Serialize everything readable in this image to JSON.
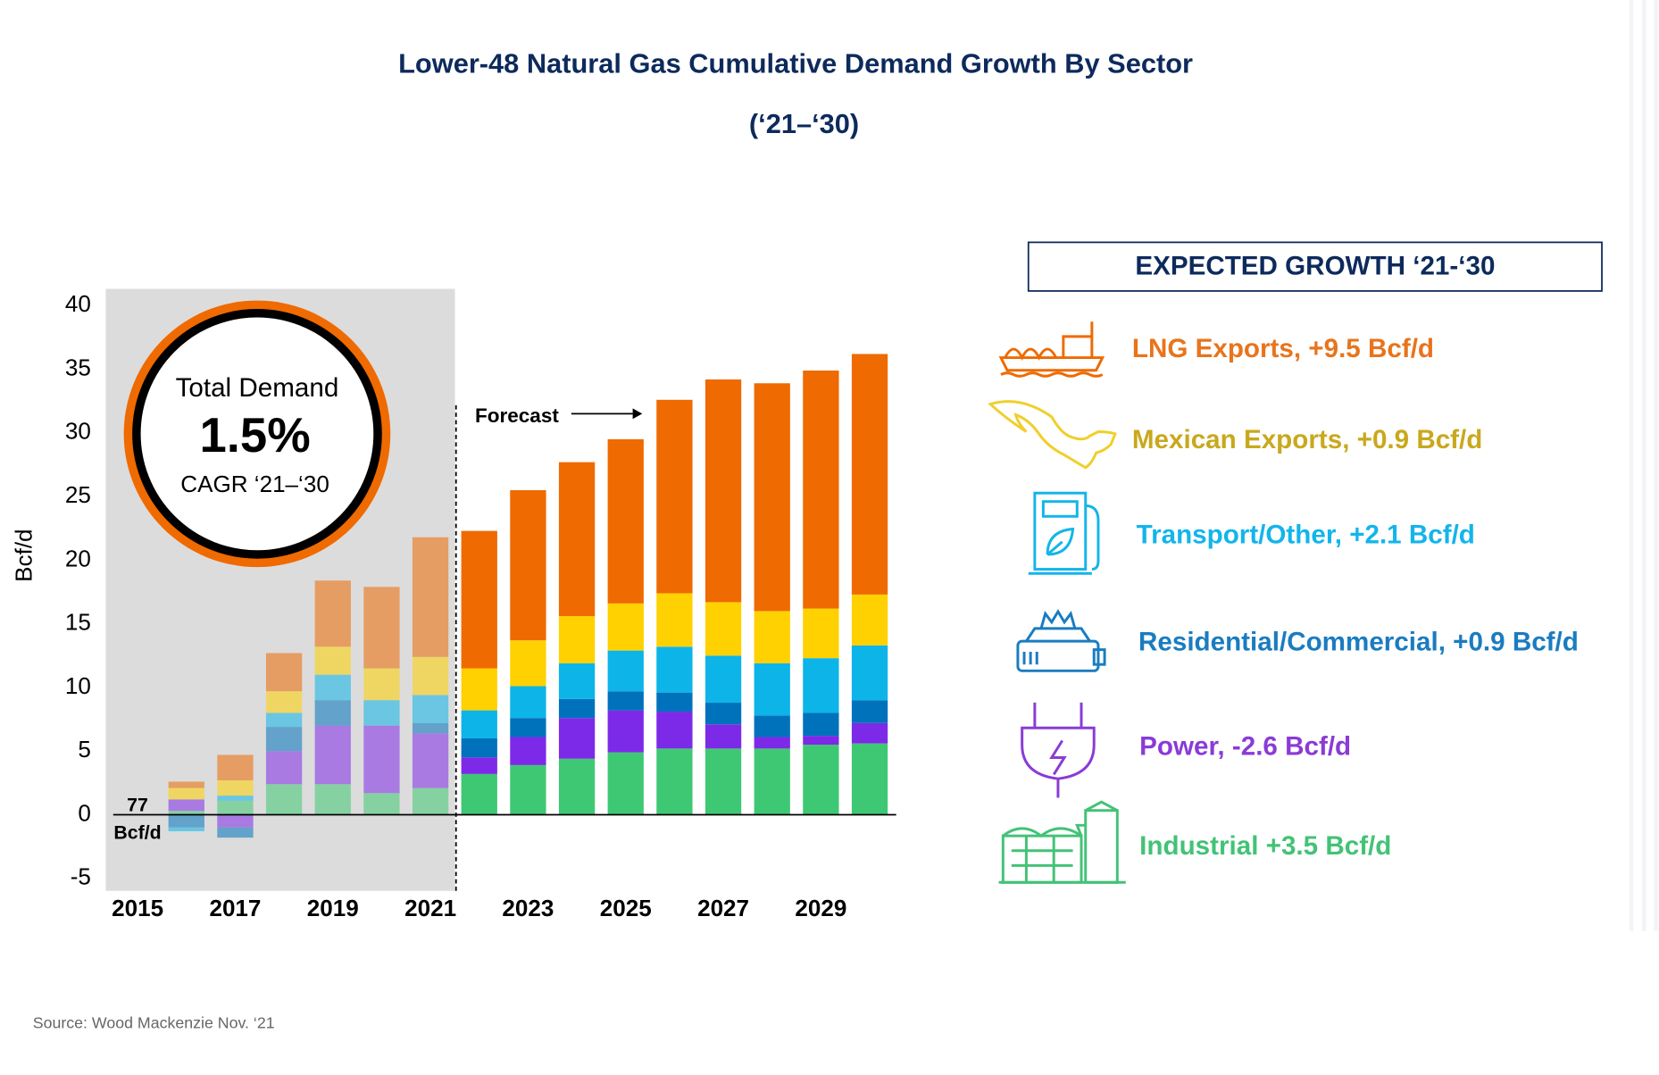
{
  "chart_data": {
    "type": "stacked_bar",
    "title": "Lower-48 Natural Gas Cumulative Demand Growth By Sector",
    "subtitle": "(‘21–‘30)",
    "y_label": "Bcf/d",
    "source": "Source: Wood Mackenzie Nov. ‘21",
    "annotations": {
      "baseline_value": "77",
      "baseline_unit": "Bcf/d",
      "forecast": "Forecast",
      "cagr_title": "Total Demand",
      "cagr_value": "1.5%",
      "cagr_period": "CAGR ‘21–‘30"
    },
    "legend_title": "EXPECTED GROWTH ‘21-‘30",
    "categories": [
      "2015",
      null,
      "2017",
      null,
      "2019",
      null,
      "2021",
      null,
      "2023",
      null,
      "2025",
      null,
      "2027",
      null,
      "2029",
      null
    ],
    "series": [
      {
        "name": "LNG Exports, +9.5 Bcf/d",
        "color": "#ef6a00",
        "label_color": "#e8741c",
        "values": [
          0,
          0.5,
          2.0,
          3.0,
          5.2,
          6.4,
          9.4,
          10.8,
          11.8,
          12.1,
          12.9,
          15.2,
          17.5,
          17.9,
          18.7,
          18.9
        ]
      },
      {
        "name": "Mexican Exports, +0.9 Bcf/d",
        "color": "#ffd100",
        "label_color": "#c9a81c",
        "values": [
          0,
          0.9,
          1.2,
          1.7,
          2.2,
          2.5,
          3.0,
          3.3,
          3.6,
          3.7,
          3.7,
          4.2,
          4.2,
          4.1,
          3.9,
          4.0
        ]
      },
      {
        "name": "Transport/Other, +2.1 Bcf/d",
        "color": "#0db4e8",
        "label_color": "#13b5ea",
        "values": [
          0,
          -0.3,
          0.4,
          1.1,
          2.0,
          2.0,
          2.2,
          2.2,
          2.5,
          2.8,
          3.2,
          3.6,
          3.7,
          4.1,
          4.3,
          4.3
        ]
      },
      {
        "name": "Residential/Commercial,  +0.9 Bcf/d",
        "color": "#0072bc",
        "label_color": "#1a7cc0",
        "values": [
          0,
          -1.0,
          -0.8,
          1.9,
          2.0,
          0,
          0.8,
          1.5,
          1.5,
          1.5,
          1.5,
          1.5,
          1.7,
          1.7,
          1.8,
          1.8
        ]
      },
      {
        "name": "Power,  -2.6 Bcf/d",
        "color": "#7d2ae8",
        "label_color": "#8a3bd6",
        "values": [
          0,
          0.9,
          -1.0,
          2.6,
          4.6,
          5.3,
          4.3,
          1.3,
          2.2,
          3.2,
          3.3,
          2.9,
          1.9,
          0.9,
          0.7,
          1.6
        ]
      },
      {
        "name": "Industrial +3.5 Bcf/d",
        "color": "#3fc873",
        "label_color": "#43c276",
        "values": [
          0,
          0.3,
          1.1,
          2.4,
          2.4,
          1.7,
          2.1,
          3.2,
          3.9,
          4.4,
          4.9,
          5.2,
          5.2,
          5.2,
          5.5,
          5.6
        ]
      }
    ],
    "ylim": [
      -6,
      41.5
    ],
    "yticks": [
      -5,
      0,
      5,
      10,
      15,
      20,
      25,
      30,
      35,
      40
    ]
  }
}
